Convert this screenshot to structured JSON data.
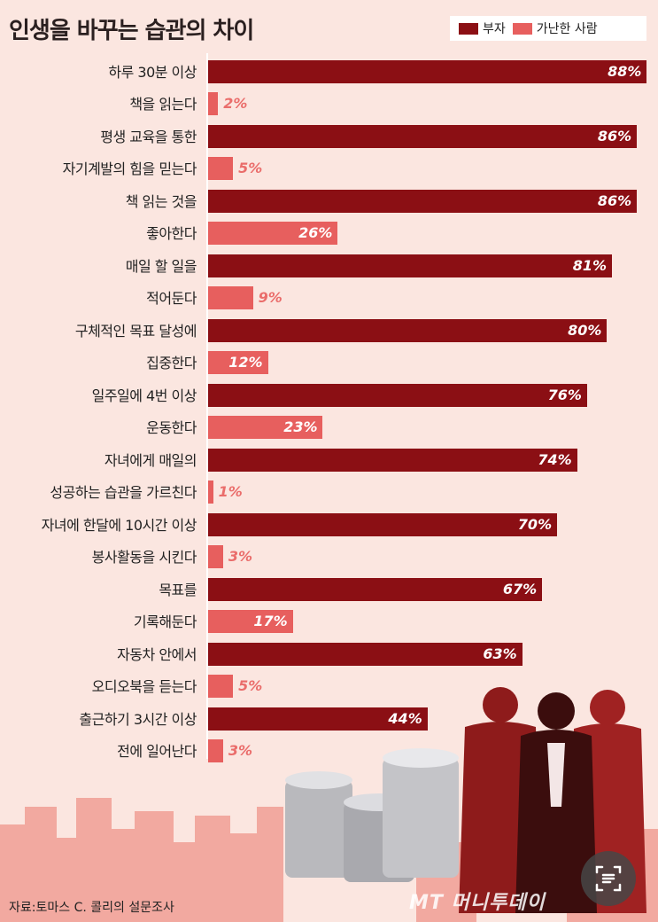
{
  "title": "인생을 바꾸는 습관의 차이",
  "legend": {
    "rich": "부자",
    "poor": "가난한 사람"
  },
  "colors": {
    "rich": "#8b0f14",
    "poor": "#e75f5e",
    "background": "#fbe6e0"
  },
  "source": "자료:토마스 C. 콜리의 설문조사",
  "logo": "MT 머니투데이",
  "chart_data": {
    "type": "bar",
    "orientation": "horizontal",
    "title": "인생을 바꾸는 습관의 차이",
    "xlabel": "",
    "ylabel": "",
    "xlim": [
      0,
      100
    ],
    "grid": false,
    "legend_position": "top-right",
    "categories": [
      [
        "하루 30분 이상",
        "책을 읽는다"
      ],
      [
        "평생 교육을 통한",
        "자기계발의 힘을 믿는다"
      ],
      [
        "책 읽는 것을",
        "좋아한다"
      ],
      [
        "매일 할 일을",
        "적어둔다"
      ],
      [
        "구체적인 목표 달성에",
        "집중한다"
      ],
      [
        "일주일에 4번 이상",
        "운동한다"
      ],
      [
        "자녀에게 매일의",
        "성공하는 습관을 가르친다"
      ],
      [
        "자녀에 한달에 10시간 이상",
        "봉사활동을 시킨다"
      ],
      [
        "목표를",
        "기록해둔다"
      ],
      [
        "자동차 안에서",
        "오디오북을 듣는다"
      ],
      [
        "출근하기 3시간 이상",
        "전에 일어난다"
      ]
    ],
    "series": [
      {
        "name": "부자",
        "values": [
          88,
          86,
          86,
          81,
          80,
          76,
          74,
          70,
          67,
          63,
          44
        ]
      },
      {
        "name": "가난한 사람",
        "values": [
          2,
          5,
          26,
          9,
          12,
          23,
          1,
          3,
          17,
          5,
          3
        ]
      }
    ],
    "value_suffix": "%"
  }
}
